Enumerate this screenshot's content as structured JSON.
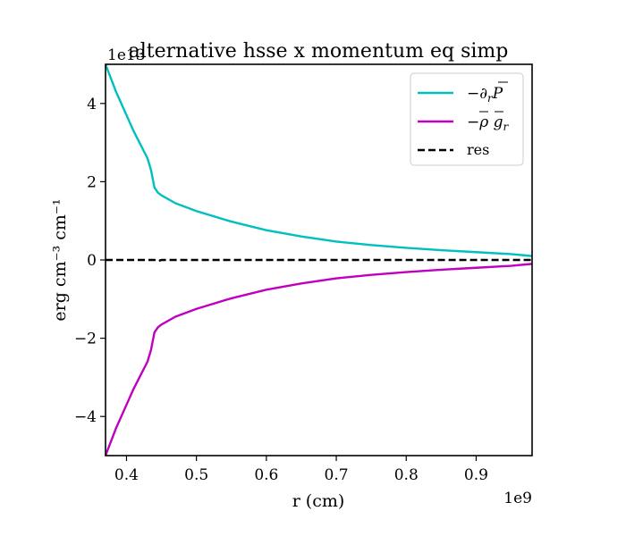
{
  "chart_data": {
    "type": "line",
    "title": "alternative hsse x momentum eq simp",
    "xlabel": "r (cm)",
    "ylabel": "erg cm⁻³  cm⁻¹",
    "x_offset_label": "1e9",
    "y_offset_label": "1e13",
    "xlim": [
      0.37,
      0.98
    ],
    "ylim": [
      -5,
      5
    ],
    "xticks": [
      "0.4",
      "0.5",
      "0.6",
      "0.7",
      "0.8",
      "0.9"
    ],
    "yticks": [
      "−4",
      "−2",
      "0",
      "2",
      "4"
    ],
    "xtick_values": [
      0.4,
      0.5,
      0.6,
      0.7,
      0.8,
      0.9
    ],
    "ytick_values": [
      -4,
      -2,
      0,
      2,
      4
    ],
    "grid": false,
    "legend_position": "top-right",
    "series": [
      {
        "name": "−∂_r P̄",
        "color": "#00bfbf",
        "style": "solid",
        "x": [
          0.37,
          0.385,
          0.4,
          0.41,
          0.42,
          0.43,
          0.435,
          0.44,
          0.445,
          0.45,
          0.47,
          0.5,
          0.55,
          0.6,
          0.65,
          0.7,
          0.75,
          0.8,
          0.85,
          0.9,
          0.95,
          0.98
        ],
        "y": [
          5.0,
          4.3,
          3.7,
          3.3,
          2.95,
          2.6,
          2.3,
          1.85,
          1.72,
          1.65,
          1.45,
          1.25,
          0.98,
          0.76,
          0.6,
          0.47,
          0.38,
          0.31,
          0.25,
          0.2,
          0.15,
          0.1
        ]
      },
      {
        "name": "−ρ̄ ḡ_r",
        "color": "#bf00bf",
        "style": "solid",
        "x": [
          0.37,
          0.385,
          0.4,
          0.41,
          0.42,
          0.43,
          0.435,
          0.44,
          0.445,
          0.45,
          0.47,
          0.5,
          0.55,
          0.6,
          0.65,
          0.7,
          0.75,
          0.8,
          0.85,
          0.9,
          0.95,
          0.98
        ],
        "y": [
          -5.0,
          -4.3,
          -3.7,
          -3.3,
          -2.95,
          -2.6,
          -2.3,
          -1.85,
          -1.72,
          -1.65,
          -1.45,
          -1.25,
          -0.98,
          -0.76,
          -0.6,
          -0.47,
          -0.38,
          -0.31,
          -0.25,
          -0.2,
          -0.15,
          -0.1
        ]
      },
      {
        "name": "res",
        "color": "#000000",
        "style": "dashed",
        "x": [
          0.37,
          0.44,
          0.445,
          0.45,
          0.98
        ],
        "y": [
          0.0,
          0.0,
          -0.03,
          0.0,
          0.0
        ]
      }
    ]
  },
  "legend": {
    "entries": [
      {
        "prefix": "−∂",
        "sub": "r",
        "main": "P"
      },
      {
        "prefix": "−",
        "main": "ρ",
        "mid": " g",
        "sub": "r"
      },
      {
        "text": "res"
      }
    ]
  }
}
